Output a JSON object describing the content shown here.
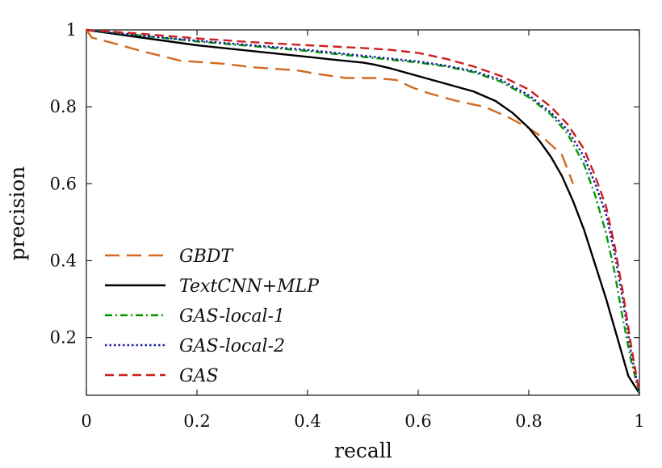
{
  "chart_data": {
    "type": "line",
    "xlabel": "recall",
    "ylabel": "precision",
    "xlim": [
      0,
      1
    ],
    "ylim": [
      0.05,
      1
    ],
    "x_ticks": [
      0,
      0.2,
      0.4,
      0.6,
      0.8,
      1
    ],
    "x_tick_labels": [
      "0",
      "0.2",
      "0.4",
      "0.6",
      "0.8",
      "1"
    ],
    "y_ticks": [
      0.2,
      0.4,
      0.6,
      0.8,
      1
    ],
    "y_tick_labels": [
      "0.2",
      "0.4",
      "0.6",
      "0.8",
      "1"
    ],
    "grid": false,
    "legend_position": "bottom-left",
    "series": [
      {
        "name": "GBDT",
        "color": "#d2691e",
        "dash": "dashed-long",
        "x": [
          0,
          0.01,
          0.05,
          0.1,
          0.17,
          0.25,
          0.3,
          0.38,
          0.42,
          0.47,
          0.52,
          0.56,
          0.59,
          0.62,
          0.67,
          0.72,
          0.76,
          0.8,
          0.83,
          0.86,
          0.88
        ],
        "y": [
          1,
          0.98,
          0.965,
          0.945,
          0.92,
          0.912,
          0.903,
          0.895,
          0.885,
          0.875,
          0.875,
          0.87,
          0.85,
          0.835,
          0.815,
          0.8,
          0.775,
          0.745,
          0.715,
          0.675,
          0.6
        ]
      },
      {
        "name": "TextCNN+MLP",
        "color": "#000000",
        "dash": "solid",
        "x": [
          0,
          0.1,
          0.2,
          0.3,
          0.4,
          0.45,
          0.5,
          0.52,
          0.55,
          0.6,
          0.65,
          0.7,
          0.74,
          0.77,
          0.8,
          0.82,
          0.84,
          0.86,
          0.88,
          0.9,
          0.92,
          0.94,
          0.96,
          0.98,
          1.0
        ],
        "y": [
          1,
          0.98,
          0.96,
          0.945,
          0.93,
          0.922,
          0.915,
          0.91,
          0.9,
          0.88,
          0.86,
          0.84,
          0.815,
          0.785,
          0.745,
          0.71,
          0.67,
          0.62,
          0.555,
          0.48,
          0.39,
          0.3,
          0.2,
          0.1,
          0.055
        ]
      },
      {
        "name": "GAS-local-1",
        "color": "#009900",
        "dash": "dashdot",
        "x": [
          0,
          0.1,
          0.2,
          0.3,
          0.4,
          0.5,
          0.6,
          0.65,
          0.7,
          0.75,
          0.8,
          0.84,
          0.87,
          0.9,
          0.92,
          0.94,
          0.955,
          0.97,
          0.985,
          1.0
        ],
        "y": [
          1,
          0.985,
          0.97,
          0.958,
          0.945,
          0.93,
          0.915,
          0.905,
          0.89,
          0.865,
          0.825,
          0.78,
          0.73,
          0.65,
          0.57,
          0.47,
          0.37,
          0.25,
          0.14,
          0.055
        ]
      },
      {
        "name": "GAS-local-2",
        "color": "#1a1aa6",
        "dash": "dotted",
        "x": [
          0,
          0.1,
          0.2,
          0.3,
          0.4,
          0.5,
          0.6,
          0.65,
          0.7,
          0.75,
          0.8,
          0.84,
          0.87,
          0.9,
          0.92,
          0.94,
          0.955,
          0.97,
          0.985,
          1.0
        ],
        "y": [
          1,
          0.985,
          0.972,
          0.96,
          0.948,
          0.933,
          0.918,
          0.907,
          0.893,
          0.87,
          0.83,
          0.785,
          0.74,
          0.67,
          0.6,
          0.52,
          0.42,
          0.3,
          0.16,
          0.055
        ]
      },
      {
        "name": "GAS",
        "color": "#cc1f1f",
        "dash": "dashed",
        "x": [
          0,
          0.1,
          0.2,
          0.3,
          0.4,
          0.5,
          0.55,
          0.6,
          0.65,
          0.7,
          0.75,
          0.8,
          0.84,
          0.87,
          0.9,
          0.92,
          0.94,
          0.955,
          0.97,
          0.985,
          1.0
        ],
        "y": [
          1,
          0.99,
          0.978,
          0.968,
          0.96,
          0.953,
          0.948,
          0.94,
          0.925,
          0.905,
          0.88,
          0.845,
          0.8,
          0.755,
          0.69,
          0.62,
          0.54,
          0.44,
          0.32,
          0.18,
          0.055
        ]
      }
    ]
  }
}
